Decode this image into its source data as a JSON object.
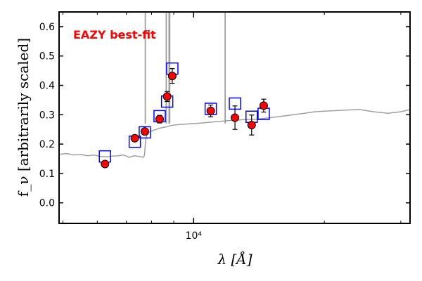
{
  "chart_data": {
    "type": "scatter",
    "x_scale": "log",
    "xlim": [
      4900,
      31500
    ],
    "ylim": [
      -0.07,
      0.65
    ],
    "yticks": [
      0.0,
      0.1,
      0.2,
      0.3,
      0.4,
      0.5,
      0.6
    ],
    "ytick_labels": [
      "0.0",
      "0.1",
      "0.2",
      "0.3",
      "0.4",
      "0.5",
      "0.6"
    ],
    "xticks": [
      10000
    ],
    "xtick_labels": [
      "10⁴"
    ],
    "xlabel": "λ [Å]",
    "ylabel": "f_ν [arbitrarily scaled]",
    "annotation": "EAZY best-fit",
    "grid": false,
    "colors": {
      "template": "#a0a0a0",
      "model_box": "#0000ff",
      "observed_fill": "#ff0000",
      "annotation": "#ff0000"
    },
    "template_spectrum": {
      "x": [
        4900,
        5100,
        5300,
        5500,
        5700,
        5900,
        6100,
        6300,
        6500,
        6700,
        6900,
        7100,
        7300,
        7500,
        7650,
        7700,
        7720,
        7740,
        7760,
        7800,
        7900,
        8000,
        8200,
        8400,
        8600,
        8800,
        9000,
        9500,
        10000,
        10500,
        11000,
        12000,
        13000,
        14000,
        15000,
        16000,
        17000,
        18000,
        19000,
        20000,
        22000,
        24000,
        26000,
        28000,
        30000,
        31500
      ],
      "y": [
        0.165,
        0.168,
        0.163,
        0.165,
        0.16,
        0.163,
        0.158,
        0.157,
        0.159,
        0.16,
        0.163,
        0.155,
        0.16,
        0.158,
        0.155,
        0.16,
        0.175,
        0.2,
        0.215,
        0.23,
        0.24,
        0.245,
        0.25,
        0.255,
        0.258,
        0.262,
        0.265,
        0.268,
        0.27,
        0.272,
        0.275,
        0.28,
        0.283,
        0.285,
        0.29,
        0.295,
        0.3,
        0.305,
        0.31,
        0.312,
        0.315,
        0.318,
        0.31,
        0.305,
        0.31,
        0.318
      ]
    },
    "emission_lines": [
      {
        "x": 7740,
        "y": 0.65
      },
      {
        "x": 8650,
        "y": 0.65
      },
      {
        "x": 8780,
        "y": 0.65
      },
      {
        "x": 8810,
        "y": 0.65
      },
      {
        "x": 11820,
        "y": 0.65
      }
    ],
    "model_photometry": {
      "x": [
        6250,
        7320,
        7720,
        8350,
        8690,
        8930,
        10950,
        12450,
        13600,
        14500
      ],
      "y": [
        0.158,
        0.208,
        0.24,
        0.295,
        0.345,
        0.457,
        0.32,
        0.338,
        0.293,
        0.303
      ]
    },
    "observed_photometry": {
      "x": [
        6250,
        7320,
        7720,
        8350,
        8690,
        8930,
        10950,
        12450,
        13600,
        14500
      ],
      "y": [
        0.132,
        0.22,
        0.243,
        0.285,
        0.362,
        0.432,
        0.313,
        0.29,
        0.265,
        0.331
      ],
      "err": [
        0.01,
        0.008,
        0.01,
        0.013,
        0.017,
        0.025,
        0.02,
        0.04,
        0.034,
        0.022
      ]
    }
  }
}
